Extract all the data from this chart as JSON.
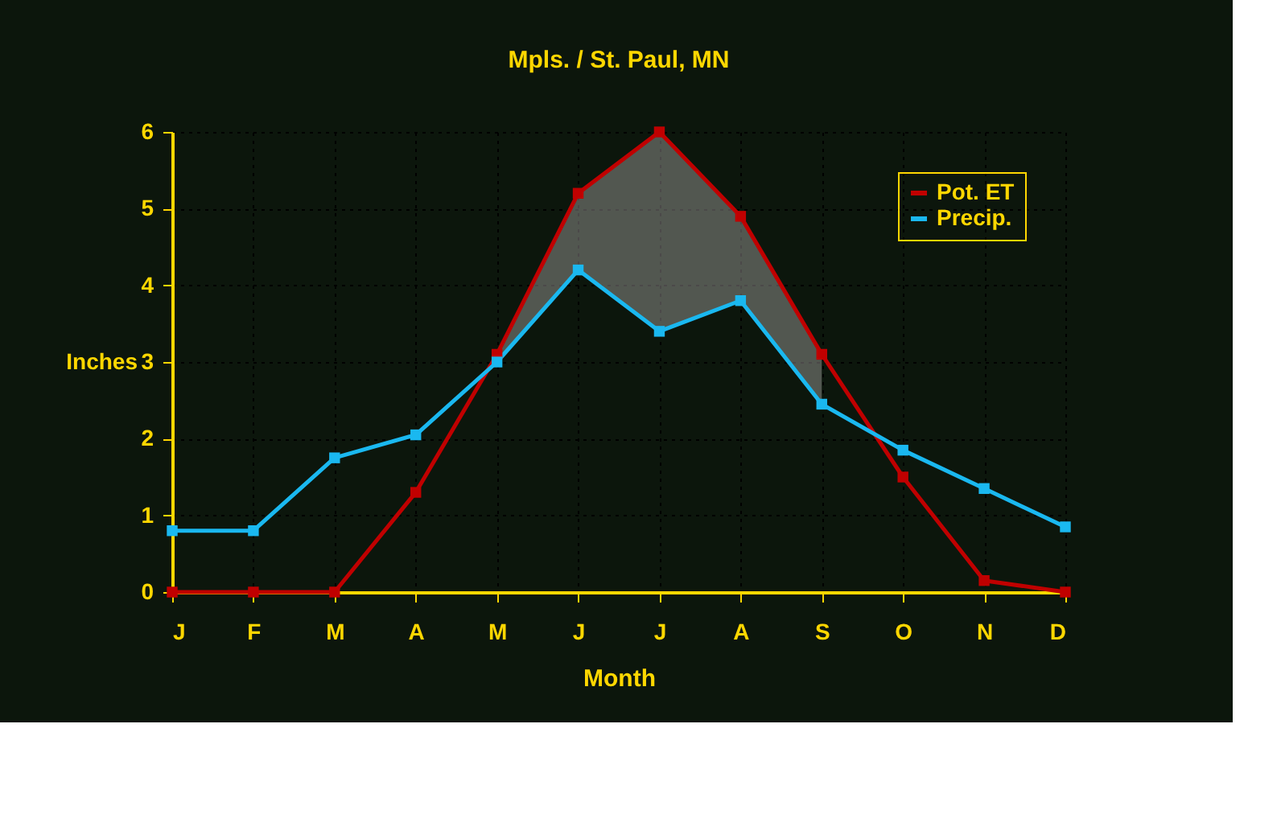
{
  "chart_data": {
    "type": "line",
    "title": "Mpls. / St. Paul, MN",
    "xlabel": "Month",
    "ylabel": "Inches",
    "categories": [
      "J",
      "F",
      "M",
      "A",
      "M",
      "J",
      "J",
      "A",
      "S",
      "O",
      "N",
      "D"
    ],
    "series": [
      {
        "name": "Pot. ET",
        "color": "#c00000",
        "values": [
          0,
          0,
          0,
          1.3,
          3.1,
          5.2,
          6.0,
          4.9,
          3.1,
          1.5,
          0.15,
          0
        ],
        "lower": [
          null,
          null,
          null,
          null,
          3.0,
          4.2,
          3.4,
          3.8,
          2.45,
          null,
          null,
          null
        ],
        "upper": [
          null,
          null,
          null,
          null,
          3.1,
          5.2,
          6.0,
          4.9,
          3.1,
          null,
          null,
          null
        ]
      },
      {
        "name": "Precip.",
        "color": "#1ab8f0",
        "values": [
          0.8,
          0.8,
          1.75,
          2.05,
          3.0,
          4.2,
          3.4,
          3.8,
          2.45,
          1.85,
          1.35,
          0.85
        ]
      }
    ],
    "ylim": [
      0,
      6
    ],
    "yticks": [
      0,
      1,
      2,
      3,
      4,
      5,
      6
    ],
    "grid": true,
    "legend": "top right",
    "marker": "square",
    "line_style": "solid"
  }
}
